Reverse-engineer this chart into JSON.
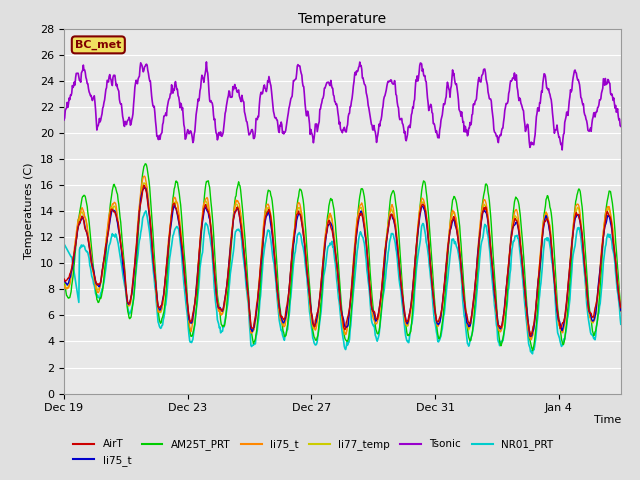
{
  "title": "Temperature",
  "xlabel": "Time",
  "ylabel": "Temperatures (C)",
  "annotation": "BC_met",
  "ylim": [
    0,
    28
  ],
  "yticks": [
    0,
    2,
    4,
    6,
    8,
    10,
    12,
    14,
    16,
    18,
    20,
    22,
    24,
    26,
    28
  ],
  "xtick_labels": [
    "Dec 19",
    "Dec 23",
    "Dec 27",
    "Dec 31",
    "Jan 4"
  ],
  "fig_bg_color": "#e0e0e0",
  "plot_bg_color": "#e8e8e8",
  "grid_color": "#ffffff",
  "series": {
    "AirT": {
      "color": "#cc0000",
      "lw": 1.0
    },
    "li75_t_b": {
      "color": "#0000cc",
      "lw": 1.0
    },
    "AM25T_PRT": {
      "color": "#00cc00",
      "lw": 1.0
    },
    "li75_t": {
      "color": "#ff8800",
      "lw": 1.0
    },
    "li77_temp": {
      "color": "#cccc00",
      "lw": 1.0
    },
    "Tsonic": {
      "color": "#9900cc",
      "lw": 1.2
    },
    "NR01_PRT": {
      "color": "#00cccc",
      "lw": 1.2
    }
  },
  "legend_entries": [
    {
      "label": "AirT",
      "color": "#cc0000"
    },
    {
      "label": "li75_t",
      "color": "#0000cc"
    },
    {
      "label": "AM25T_PRT",
      "color": "#00cc00"
    },
    {
      "label": "li75_t",
      "color": "#ff8800"
    },
    {
      "label": "li77_temp",
      "color": "#cccc00"
    },
    {
      "label": "Tsonic",
      "color": "#9900cc"
    },
    {
      "label": "NR01_PRT",
      "color": "#00cccc"
    }
  ]
}
